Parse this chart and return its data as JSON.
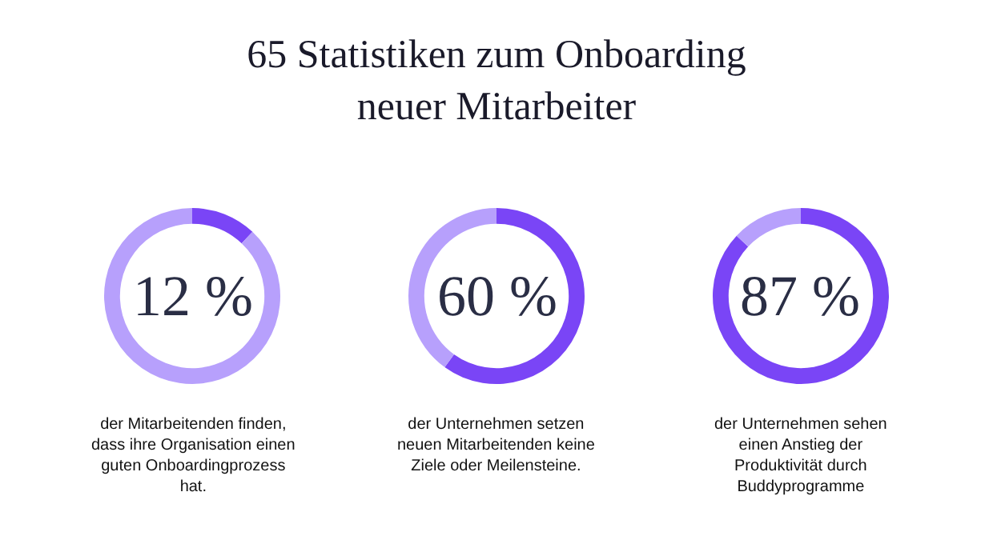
{
  "chart_data": [
    {
      "type": "other",
      "title": "65 Statistiken zum Onboarding\nneuer Mitarbeiter"
    },
    {
      "type": "donut",
      "categories": [
        null,
        null
      ],
      "values": [
        12,
        88
      ],
      "colors": [
        "#7a45f6",
        "#b7a0fc"
      ],
      "annotations": [
        "12 %",
        "der Mitarbeitenden finden,\ndass ihre Organisation einen\nguten Onboardingprozess\nhat."
      ]
    },
    {
      "type": "donut",
      "categories": [
        null,
        null
      ],
      "values": [
        60,
        40
      ],
      "colors": [
        "#7a45f6",
        "#b7a0fc"
      ],
      "annotations": [
        "60 %",
        "der Unternehmen setzen\nneuen Mitarbeitenden keine\nZiele oder Meilensteine."
      ]
    },
    {
      "type": "donut",
      "categories": [
        null,
        null
      ],
      "values": [
        87,
        13
      ],
      "colors": [
        "#7a45f6",
        "#b7a0fc"
      ],
      "annotations": [
        "87 %",
        "der Unternehmen sehen\neinen Anstieg der\nProduktivität durch\nBuddyprogramme"
      ]
    }
  ]
}
